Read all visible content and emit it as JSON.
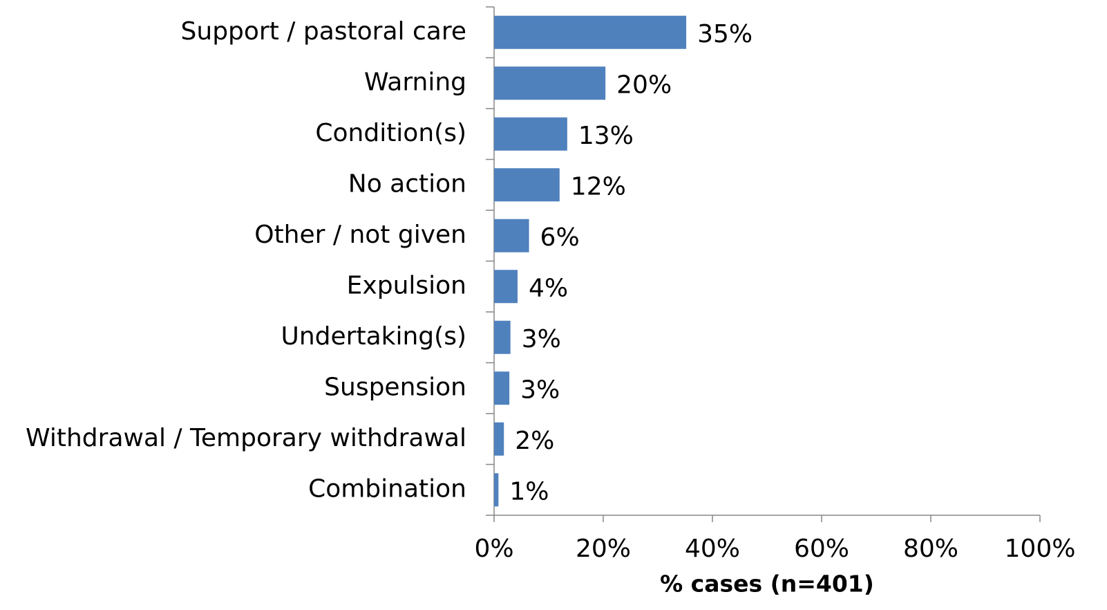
{
  "chart_data": {
    "type": "hbar",
    "categories": [
      "Support / pastoral care",
      "Warning",
      "Condition(s)",
      "No action",
      "Other / not given",
      "Expulsion",
      "Undertaking(s)",
      "Suspension",
      "Withdrawal / Temporary withdrawal",
      "Combination"
    ],
    "values": [
      35.2,
      20.4,
      13.4,
      12.0,
      6.4,
      4.3,
      3.0,
      2.8,
      1.8,
      0.8
    ],
    "value_labels": [
      "35%",
      "20%",
      "13%",
      "12%",
      "6%",
      "4%",
      "3%",
      "3%",
      "2%",
      "1%"
    ],
    "color": "#4f81bd",
    "xlabel": "% cases (n=401)",
    "xlim": [
      0,
      100
    ],
    "xticks": [
      {
        "value": 0,
        "label": "0%"
      },
      {
        "value": 20,
        "label": "20%"
      },
      {
        "value": 40,
        "label": "40%"
      },
      {
        "value": 60,
        "label": "60%"
      },
      {
        "value": 80,
        "label": "80%"
      },
      {
        "value": 100,
        "label": "100%"
      }
    ],
    "grid": false
  }
}
